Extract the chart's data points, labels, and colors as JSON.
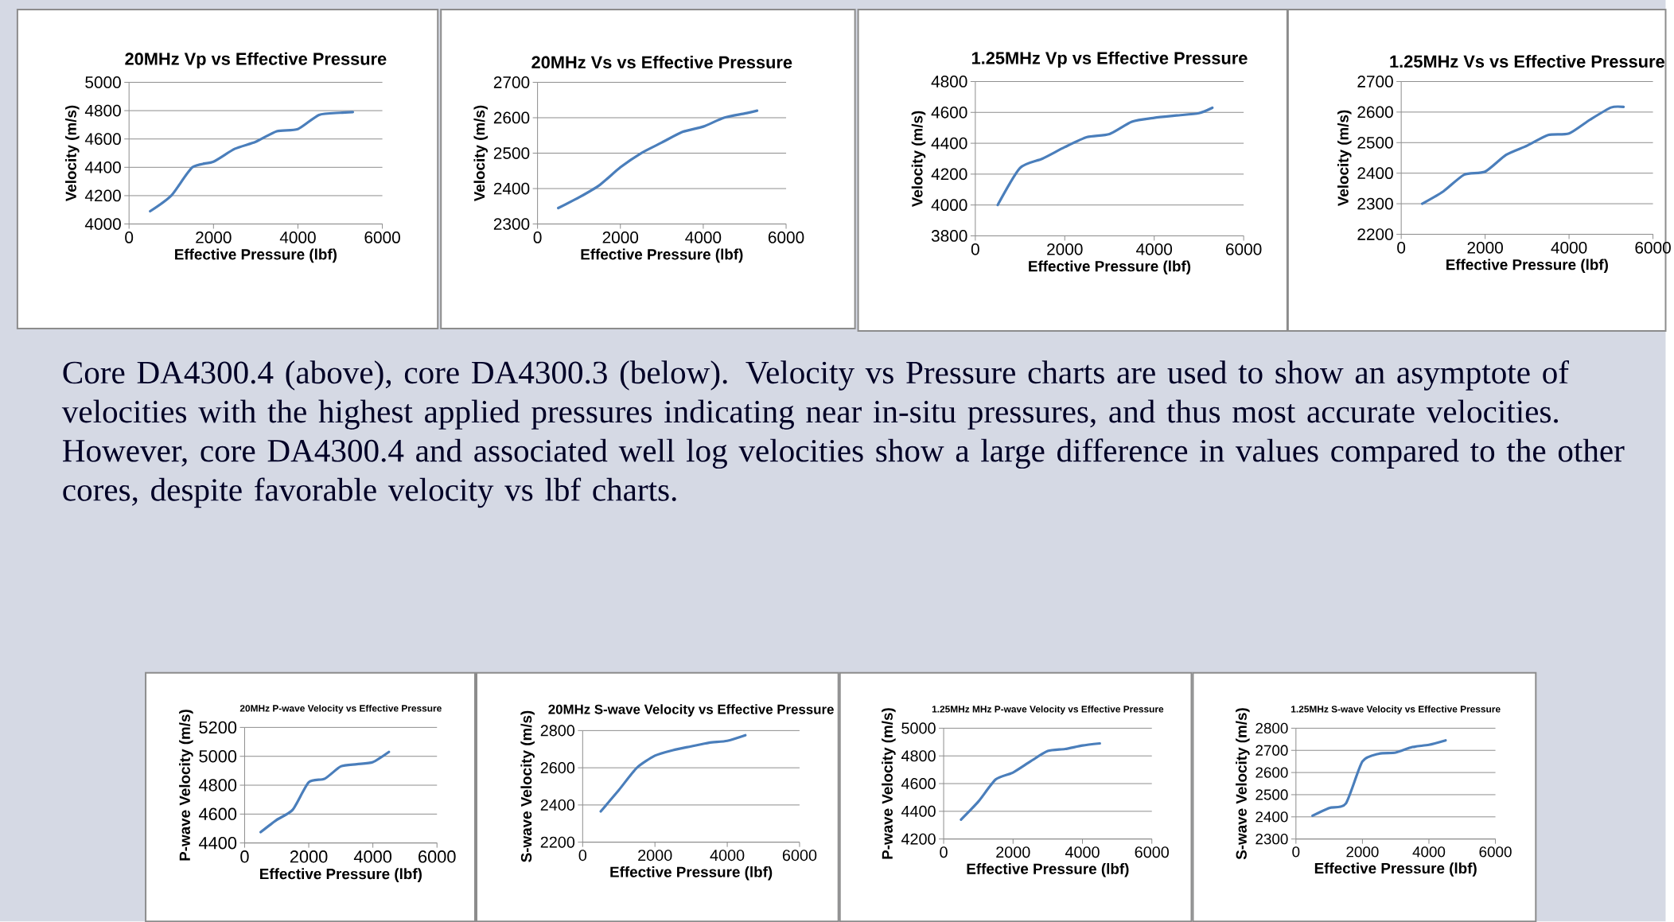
{
  "chart_data": [
    {
      "type": "line",
      "title": "20MHz Vp vs Effective Pressure",
      "xlabel": "Effective Pressure (lbf)",
      "ylabel": "Velocity (m/s)",
      "x": [
        500,
        1000,
        1500,
        2000,
        2500,
        3000,
        3500,
        4000,
        4500,
        5000,
        5300
      ],
      "values": [
        4090,
        4200,
        4400,
        4440,
        4530,
        4580,
        4655,
        4670,
        4770,
        4785,
        4790
      ],
      "color": "#4a7ebb",
      "xlim": [
        0,
        6000
      ],
      "xticks": [
        0,
        2000,
        4000,
        6000
      ],
      "ylim": [
        4000,
        5000
      ],
      "yticks": [
        4000,
        4200,
        4400,
        4600,
        4800,
        5000
      ],
      "grid": "y"
    },
    {
      "type": "line",
      "title": "20MHz Vs vs Effective Pressure",
      "xlabel": "Effective Pressure (lbf)",
      "ylabel": "Velocity (m/s)",
      "x": [
        500,
        1000,
        1500,
        2000,
        2500,
        3000,
        3500,
        4000,
        4500,
        5000,
        5300
      ],
      "values": [
        2345,
        2375,
        2410,
        2460,
        2500,
        2530,
        2560,
        2575,
        2600,
        2612,
        2620
      ],
      "color": "#4a7ebb",
      "xlim": [
        0,
        6000
      ],
      "xticks": [
        0,
        2000,
        4000,
        6000
      ],
      "ylim": [
        2300,
        2700
      ],
      "yticks": [
        2300,
        2400,
        2500,
        2600,
        2700
      ],
      "grid": "y"
    },
    {
      "type": "line",
      "title": "1.25MHz Vp vs Effective Pressure",
      "xlabel": "Effective Pressure (lbf)",
      "ylabel": "Velocity (m/s)",
      "x": [
        500,
        1000,
        1500,
        2000,
        2500,
        3000,
        3500,
        4000,
        4500,
        5000,
        5300
      ],
      "values": [
        4000,
        4240,
        4300,
        4375,
        4440,
        4460,
        4540,
        4565,
        4580,
        4595,
        4630
      ],
      "color": "#4a7ebb",
      "xlim": [
        0,
        6000
      ],
      "xticks": [
        0,
        2000,
        4000,
        6000
      ],
      "ylim": [
        3800,
        4800
      ],
      "yticks": [
        3800,
        4000,
        4200,
        4400,
        4600,
        4800
      ],
      "grid": "y"
    },
    {
      "type": "line",
      "title": "1.25MHz Vs vs Effective Pressure",
      "xlabel": "Effective Pressure (lbf)",
      "ylabel": "Velocity (m/s)",
      "x": [
        500,
        1000,
        1500,
        2000,
        2500,
        3000,
        3500,
        4000,
        4500,
        5000,
        5300
      ],
      "values": [
        2300,
        2340,
        2395,
        2405,
        2460,
        2490,
        2525,
        2530,
        2575,
        2615,
        2617
      ],
      "color": "#4a7ebb",
      "xlim": [
        0,
        6000
      ],
      "xticks": [
        0,
        2000,
        4000,
        6000
      ],
      "ylim": [
        2200,
        2700
      ],
      "yticks": [
        2200,
        2300,
        2400,
        2500,
        2600,
        2700
      ],
      "grid": "y"
    },
    {
      "type": "other",
      "annotations": [
        "Core DA4300.4 (above), core DA4300.3 (below). Velocity vs Pressure charts are used to show an asymptote of velocities with the highest applied pressures indicating near in-situ pressures, and thus most accurate velocities. However, core DA4300.4 and associated well log velocities show a large difference in values compared to the other cores, despite favorable velocity vs lbf charts."
      ]
    },
    {
      "type": "line",
      "title": "20MHz P-wave Velocity vs Effective Pressure",
      "xlabel": "Effective Pressure (lbf)",
      "ylabel": "P-wave Velocity (m/s)",
      "x": [
        500,
        1000,
        1500,
        2000,
        2500,
        3000,
        3500,
        4000,
        4500
      ],
      "values": [
        4475,
        4560,
        4630,
        4820,
        4845,
        4930,
        4945,
        4960,
        5030
      ],
      "color": "#4a7ebb",
      "xlim": [
        0,
        6000
      ],
      "xticks": [
        0,
        2000,
        4000,
        6000
      ],
      "ylim": [
        4400,
        5200
      ],
      "yticks": [
        4400,
        4600,
        4800,
        5000,
        5200
      ],
      "grid": "y"
    },
    {
      "type": "line",
      "title": "20MHz S-wave Velocity vs Effective Pressure",
      "xlabel": "Effective Pressure (lbf)",
      "ylabel": "S-wave Velocity (m/s)",
      "x": [
        500,
        1000,
        1500,
        2000,
        2500,
        3000,
        3500,
        4000,
        4500
      ],
      "values": [
        2365,
        2480,
        2600,
        2665,
        2695,
        2715,
        2735,
        2745,
        2775
      ],
      "color": "#4a7ebb",
      "xlim": [
        0,
        6000
      ],
      "xticks": [
        0,
        2000,
        4000,
        6000
      ],
      "ylim": [
        2200,
        2800
      ],
      "yticks": [
        2200,
        2400,
        2600,
        2800
      ],
      "grid": "y"
    },
    {
      "type": "line",
      "title": "1.25MHz MHz P-wave Velocity vs Effective Pressure",
      "xlabel": "Effective Pressure (lbf)",
      "ylabel": "P-wave Velocity (m/s)",
      "x": [
        500,
        1000,
        1500,
        2000,
        2500,
        3000,
        3500,
        4000,
        4500
      ],
      "values": [
        4340,
        4470,
        4630,
        4680,
        4760,
        4835,
        4850,
        4875,
        4890
      ],
      "color": "#4a7ebb",
      "xlim": [
        0,
        6000
      ],
      "xticks": [
        0,
        2000,
        4000,
        6000
      ],
      "ylim": [
        4200,
        5000
      ],
      "yticks": [
        4200,
        4400,
        4600,
        4800,
        5000
      ],
      "grid": "y"
    },
    {
      "type": "line",
      "title": "1.25MHz S-wave Velocity vs Effective Pressure",
      "xlabel": "Effective Pressure (lbf)",
      "ylabel": "S-wave Velocity (m/s)",
      "x": [
        500,
        1000,
        1500,
        2000,
        2500,
        3000,
        3500,
        4000,
        4500
      ],
      "values": [
        2405,
        2440,
        2460,
        2650,
        2685,
        2690,
        2715,
        2725,
        2745
      ],
      "color": "#4a7ebb",
      "xlim": [
        0,
        6000
      ],
      "xticks": [
        0,
        2000,
        4000,
        6000
      ],
      "ylim": [
        2300,
        2800
      ],
      "yticks": [
        2300,
        2400,
        2500,
        2600,
        2700,
        2800
      ],
      "grid": "y"
    }
  ]
}
